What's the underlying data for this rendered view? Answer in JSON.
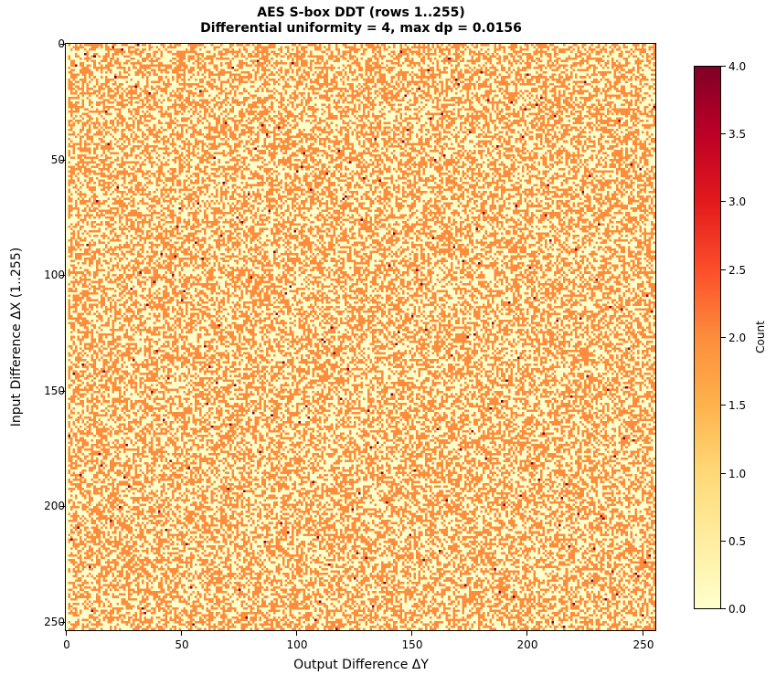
{
  "chart_data": {
    "type": "heatmap",
    "title": "AES S-box DDT (rows 1..255)",
    "subtitle": "Differential uniformity = 4, max dp = 0.0156",
    "xlabel": "Output Difference ΔY",
    "ylabel": "Input Difference ΔX (1..255)",
    "x_range": [
      0,
      255
    ],
    "y_range": [
      1,
      255
    ],
    "x_ticks": [
      0,
      50,
      100,
      150,
      200,
      250
    ],
    "y_ticks": [
      0,
      50,
      100,
      150,
      200,
      250
    ],
    "colorbar": {
      "label": "Count",
      "colormap": "YlOrRd",
      "vmin": 0.0,
      "vmax": 4.0,
      "ticks": [
        "0.0",
        "0.5",
        "1.0",
        "1.5",
        "2.0",
        "2.5",
        "3.0",
        "3.5",
        "4.0"
      ]
    },
    "value_colors": {
      "0": "#ffffcc",
      "2": "#fd8d3c",
      "4": "#800026"
    },
    "values_description": "256-column x 255-row DDT of the AES S-box; entries are 0, 2 or 4 (each row has one 4, 126 twos, 129 zeros)",
    "differential_uniformity": 4,
    "max_dp": 0.0156,
    "grid": false
  },
  "labels": {
    "title": "AES S-box DDT (rows 1..255)",
    "subtitle": "Differential uniformity = 4, max dp = 0.0156",
    "xlabel": "Output Difference ΔY",
    "ylabel": "Input Difference ΔX (1..255)",
    "cbar_label": "Count",
    "xticks": [
      "0",
      "50",
      "100",
      "150",
      "200",
      "250"
    ],
    "yticks": [
      "0",
      "50",
      "100",
      "150",
      "200",
      "250"
    ],
    "cticks": [
      "0.0",
      "0.5",
      "1.0",
      "1.5",
      "2.0",
      "2.5",
      "3.0",
      "3.5",
      "4.0"
    ]
  }
}
